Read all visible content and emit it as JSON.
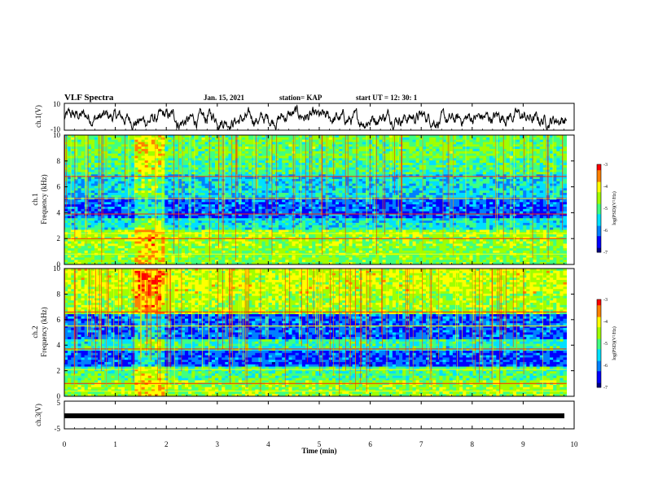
{
  "header": {
    "title": "VLF Spectra",
    "date": "Jan. 15, 2021",
    "station": "station= KAP",
    "start": "start  UT =   12: 30: 1"
  },
  "chart_data": [
    {
      "type": "line",
      "panel": "ch1-waveform",
      "ylabel": "ch.1(V)",
      "ylim": [
        -10,
        10
      ],
      "yticks": [
        "10",
        "-10"
      ],
      "xlim": [
        0,
        10
      ],
      "description_values": {
        "mean": 0,
        "typical_range": [
          -7,
          5
        ]
      }
    },
    {
      "type": "heatmap",
      "panel": "ch1-spectrogram",
      "ylabel": "ch.1\nFrequency (kHz)",
      "ylabel_lines": [
        "ch.1",
        "Frequency (kHz)"
      ],
      "ylim": [
        0,
        10
      ],
      "yticks": [
        "0",
        "2",
        "4",
        "6",
        "8",
        "10"
      ],
      "xlim": [
        0,
        10
      ],
      "colorbar": {
        "label": "log(PSD)(V²/Hz)",
        "range": [
          -7,
          -3
        ],
        "ticks": [
          "-3",
          "-4",
          "-5",
          "-6",
          "-7"
        ]
      }
    },
    {
      "type": "heatmap",
      "panel": "ch2-spectrogram",
      "ylabel_lines": [
        "ch.2",
        "Frequency (kHz)"
      ],
      "ylim": [
        0,
        10
      ],
      "yticks": [
        "0",
        "2",
        "4",
        "6",
        "8",
        "10"
      ],
      "xlim": [
        0,
        10
      ],
      "colorbar": {
        "label": "log(PSD)(V²/Hz)",
        "range": [
          -7,
          -3
        ],
        "ticks": [
          "-3",
          "-4",
          "-5",
          "-6",
          "-7"
        ]
      }
    },
    {
      "type": "line",
      "panel": "ch3-waveform",
      "ylabel": "ch.3(V)",
      "ylim": [
        -5,
        5
      ],
      "yticks": [
        "5",
        "0",
        "-5"
      ],
      "xlim": [
        0,
        10
      ],
      "description_values": {
        "mean": -1.5
      }
    }
  ],
  "xaxis": {
    "label": "Time (min)",
    "ticks": [
      "0",
      "1",
      "2",
      "3",
      "4",
      "5",
      "6",
      "7",
      "8",
      "9",
      "10"
    ]
  },
  "colormap": [
    "#000080",
    "#0000ff",
    "#0080ff",
    "#00e0ff",
    "#40ff80",
    "#a0ff00",
    "#ffff00",
    "#ff8000",
    "#ff0000"
  ]
}
